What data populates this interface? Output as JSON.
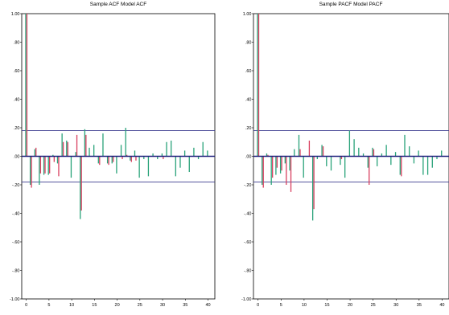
{
  "chart_data": [
    {
      "type": "bar",
      "title": "Sample ACF  Model ACF",
      "xlabel": "",
      "ylabel": "",
      "xlim": [
        -1,
        41.5
      ],
      "ylim": [
        -1.0,
        1.0
      ],
      "xticks": [
        0,
        5,
        10,
        15,
        20,
        25,
        30,
        35,
        40
      ],
      "xtick_labels": [
        "0",
        "5",
        "10",
        "15",
        "20",
        "25",
        "30",
        "35",
        "40"
      ],
      "yticks": [
        1.0,
        0.8,
        0.6,
        0.4,
        0.2,
        0.0,
        -0.2,
        -0.4,
        -0.6,
        -0.8,
        -1.0
      ],
      "ytick_labels": [
        "1.00",
        ".80",
        ".60",
        ".40",
        ".20",
        ".00",
        "-.20",
        "-.40",
        "-.60",
        "-.80",
        "-1.00"
      ],
      "confidence_band": 0.18,
      "grid": false,
      "lags": [
        0,
        1,
        2,
        3,
        4,
        5,
        6,
        7,
        8,
        9,
        10,
        11,
        12,
        13,
        14,
        15,
        16,
        17,
        18,
        19,
        20,
        21,
        22,
        23,
        24,
        25,
        26,
        27,
        28,
        29,
        30,
        31,
        32,
        33,
        34,
        35,
        36,
        37,
        38,
        39,
        40
      ],
      "series": [
        {
          "color": "#2aa37a",
          "values": [
            1.0,
            -0.2,
            0.05,
            -0.2,
            -0.13,
            -0.13,
            0.01,
            -0.05,
            0.16,
            0.11,
            -0.15,
            0.03,
            -0.44,
            0.19,
            0.06,
            0.08,
            -0.05,
            0.16,
            -0.05,
            -0.05,
            -0.12,
            0.08,
            0.2,
            -0.03,
            0.04,
            -0.15,
            -0.02,
            -0.14,
            0.02,
            -0.02,
            0.02,
            0.1,
            0.11,
            -0.14,
            -0.08,
            0.04,
            -0.11,
            0.06,
            -0.02,
            0.1,
            0.04
          ]
        },
        {
          "color": "#d94060",
          "values": [
            1.0,
            -0.22,
            0.06,
            -0.12,
            -0.12,
            -0.12,
            -0.04,
            -0.14,
            0.1,
            0.1,
            0.0,
            0.15,
            -0.38,
            0.15,
            0.0,
            0.0,
            -0.06,
            0.0,
            -0.06,
            -0.04,
            0.0,
            -0.02,
            0.01,
            -0.04,
            -0.03,
            0.0,
            0.0,
            0.0,
            0.0,
            0.0,
            -0.02,
            0.0,
            0.0,
            0.0,
            0.0,
            0.0,
            0.0,
            0.0,
            0.0,
            0.0,
            0.0
          ]
        }
      ]
    },
    {
      "type": "bar",
      "title": "Sample PACF  Model PACF",
      "xlabel": "",
      "ylabel": "",
      "xlim": [
        -1,
        41.5
      ],
      "ylim": [
        -1.0,
        1.0
      ],
      "xticks": [
        0,
        5,
        10,
        15,
        20,
        25,
        30,
        35,
        40
      ],
      "xtick_labels": [
        "0",
        "5",
        "10",
        "15",
        "20",
        "25",
        "30",
        "35",
        "40"
      ],
      "yticks": [
        1.0,
        0.8,
        0.6,
        0.4,
        0.2,
        0.0,
        -0.2,
        -0.4,
        -0.6,
        -0.8,
        -1.0
      ],
      "ytick_labels": [
        "1.00",
        ".80",
        ".60",
        ".40",
        ".20",
        ".00",
        "-.20",
        "-.40",
        "-.60",
        "-.80",
        "-1.00"
      ],
      "confidence_band": 0.18,
      "grid": false,
      "lags": [
        0,
        1,
        2,
        3,
        4,
        5,
        6,
        7,
        8,
        9,
        10,
        11,
        12,
        13,
        14,
        15,
        16,
        17,
        18,
        19,
        20,
        21,
        22,
        23,
        24,
        25,
        26,
        27,
        28,
        29,
        30,
        31,
        32,
        33,
        34,
        35,
        36,
        37,
        38,
        39,
        40
      ],
      "series": [
        {
          "color": "#2aa37a",
          "values": [
            1.0,
            -0.2,
            0.02,
            -0.2,
            -0.13,
            -0.12,
            -0.05,
            -0.1,
            0.05,
            0.15,
            -0.15,
            0.0,
            -0.45,
            -0.02,
            0.08,
            -0.07,
            -0.1,
            0.0,
            -0.06,
            -0.15,
            0.18,
            0.12,
            0.06,
            0.02,
            -0.08,
            0.06,
            -0.07,
            0.02,
            0.08,
            -0.06,
            0.03,
            -0.13,
            0.15,
            0.07,
            -0.05,
            0.04,
            -0.13,
            -0.13,
            -0.08,
            -0.02,
            0.04
          ]
        },
        {
          "color": "#d94060",
          "values": [
            1.0,
            -0.22,
            0.01,
            -0.15,
            -0.08,
            -0.1,
            -0.2,
            -0.25,
            0.0,
            0.05,
            0.0,
            0.11,
            -0.37,
            0.0,
            0.07,
            0.0,
            0.0,
            0.0,
            -0.02,
            0.0,
            0.0,
            0.0,
            0.0,
            0.0,
            -0.2,
            0.05,
            0.0,
            0.0,
            0.0,
            0.0,
            0.0,
            -0.14,
            0.0,
            0.0,
            0.0,
            0.0,
            0.0,
            0.0,
            0.0,
            0.0,
            0.0
          ]
        }
      ]
    }
  ]
}
